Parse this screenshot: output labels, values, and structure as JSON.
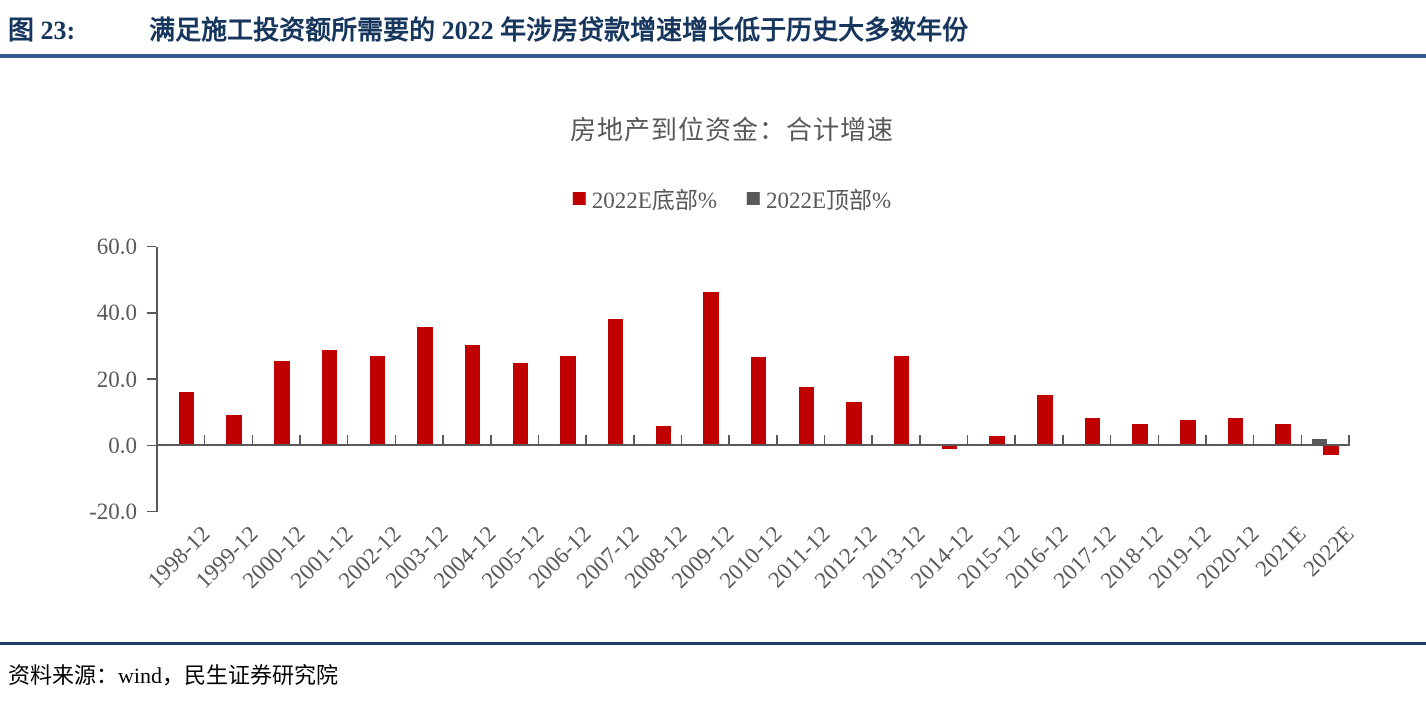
{
  "header": {
    "figure_label": "图 23:",
    "title": "满足施工投资额所需要的 2022 年涉房贷款增速增长低于历史大多数年份"
  },
  "chart_data": {
    "type": "bar",
    "title": "房地产到位资金：合计增速",
    "categories": [
      "1998-12",
      "1999-12",
      "2000-12",
      "2001-12",
      "2002-12",
      "2003-12",
      "2004-12",
      "2005-12",
      "2006-12",
      "2007-12",
      "2008-12",
      "2009-12",
      "2010-12",
      "2011-12",
      "2012-12",
      "2013-12",
      "2014-12",
      "2015-12",
      "2016-12",
      "2017-12",
      "2018-12",
      "2019-12",
      "2020-12",
      "2021E",
      "2022E"
    ],
    "series": [
      {
        "name": "2022E底部%",
        "color": "#C00000",
        "values": [
          16.0,
          9.0,
          25.3,
          28.8,
          27.0,
          35.8,
          30.3,
          24.8,
          27.0,
          38.2,
          5.9,
          46.2,
          26.6,
          17.7,
          13.0,
          26.8,
          -0.7,
          2.9,
          15.3,
          8.2,
          6.5,
          7.7,
          8.3,
          6.5,
          -2.7
        ]
      },
      {
        "name": "2022E顶部%",
        "color": "#595959",
        "values": [
          null,
          null,
          null,
          null,
          null,
          null,
          null,
          null,
          null,
          null,
          null,
          null,
          null,
          null,
          null,
          null,
          null,
          null,
          null,
          null,
          null,
          null,
          null,
          null,
          1.9
        ]
      }
    ],
    "ylim": [
      -20,
      60
    ],
    "yticks": [
      {
        "value": 60,
        "label": "60.0"
      },
      {
        "value": 40,
        "label": "40.0"
      },
      {
        "value": 20,
        "label": "20.0"
      },
      {
        "value": 0,
        "label": "0.0"
      },
      {
        "value": -20,
        "label": "-20.0"
      }
    ],
    "axis_color": "#595959",
    "legend_position": "top",
    "grid": false
  },
  "footer": {
    "source": "资料来源：wind，民生证券研究院"
  }
}
